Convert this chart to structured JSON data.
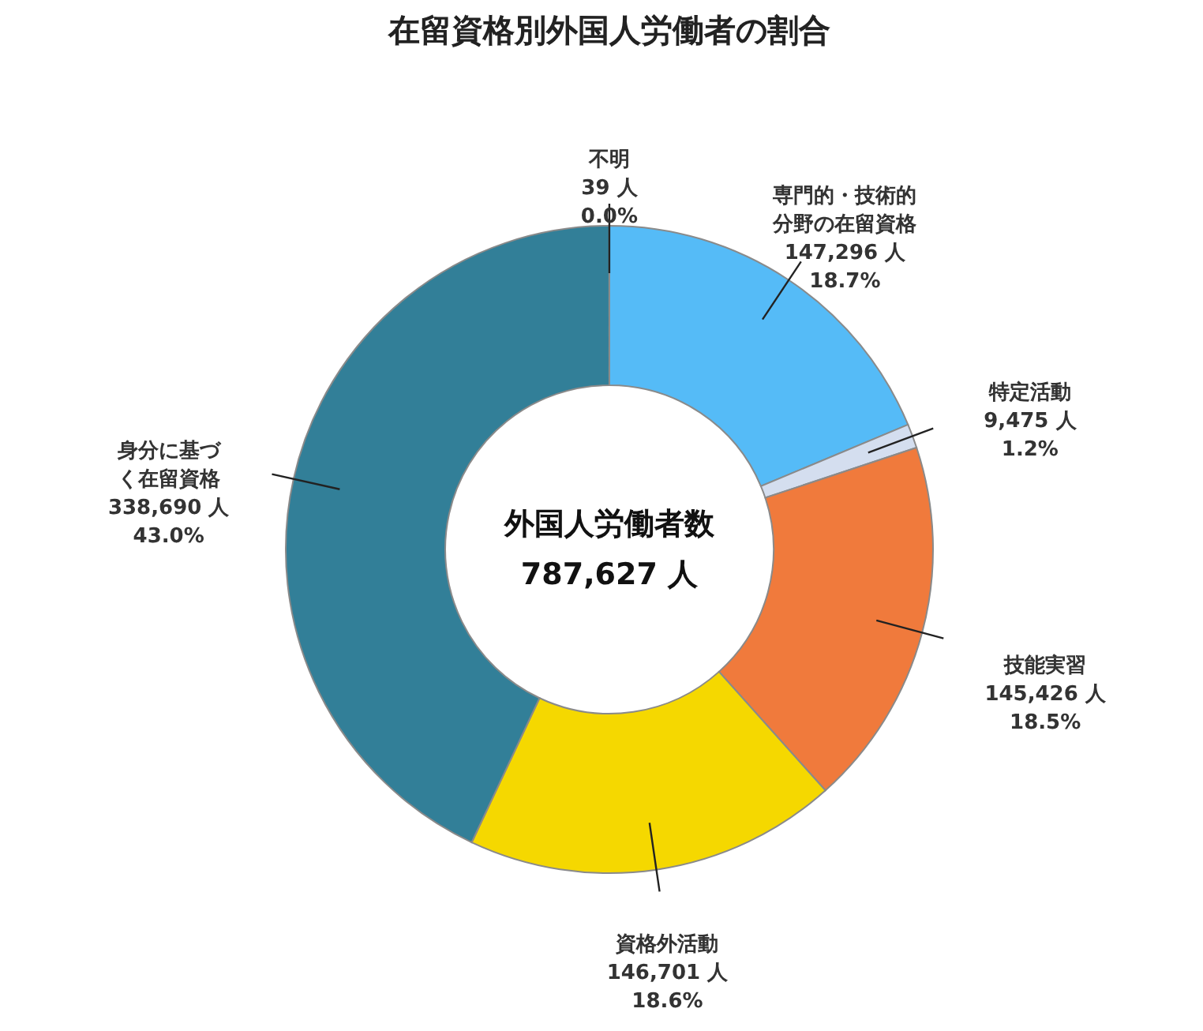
{
  "chart_data": {
    "type": "donut",
    "title": "在留資格別外国人労働者の割合",
    "categories": [
      "専門的・技術的分野の在留資格",
      "特定活動",
      "技能実習",
      "資格外活動",
      "身分に基づく在留資格",
      "不明"
    ],
    "values": [
      147296,
      9475,
      145426,
      146701,
      338690,
      39
    ],
    "value_labels": [
      "147,296 人\n18.7%",
      "9,475 人\n1.2%",
      "145,426 人\n18.5%",
      "146,701 人\n18.6%",
      "338,690 人\n43.0%",
      "39 人\n0.0%"
    ],
    "colors": [
      "#55bbf7",
      "#d4deef",
      "#f07a3c",
      "#f5d800",
      "#327f98",
      "#8c8c8c"
    ],
    "annotations": [
      "外国人労働者数",
      "787,627 人"
    ]
  }
}
